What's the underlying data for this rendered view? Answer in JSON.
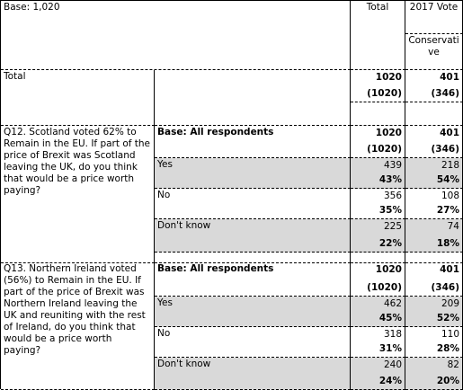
{
  "header": {
    "base": "Base: 1,020",
    "total": "Total",
    "group": "2017 Vote",
    "subgroup": "Conservative"
  },
  "total_row": {
    "label": "Total",
    "total": [
      "1020",
      "(1020)"
    ],
    "conservative": [
      "401",
      "(346)"
    ]
  },
  "questions": [
    {
      "question": "Q12. Scotland voted 62% to Remain in the EU. If part of the price of Brexit was Scotland leaving the UK, do you think that would be a price worth paying?",
      "base_label": "Base: All respondents",
      "base": {
        "total": [
          "1020",
          "(1020)"
        ],
        "conservative": [
          "401",
          "(346)"
        ]
      },
      "rows": [
        {
          "label": "Yes",
          "total": [
            "439",
            "43%"
          ],
          "conservative": [
            "218",
            "54%"
          ]
        },
        {
          "label": "No",
          "total": [
            "356",
            "35%"
          ],
          "conservative": [
            "108",
            "27%"
          ]
        },
        {
          "label": "Don't know",
          "total": [
            "225",
            "22%"
          ],
          "conservative": [
            "74",
            "18%"
          ]
        }
      ]
    },
    {
      "question": "Q13. Northern Ireland voted (56%) to Remain in the EU. If part of the price of Brexit was Northern Ireland leaving the UK and reuniting with the rest of Ireland, do you think that would be a price worth paying?",
      "base_label": "Base: All respondents",
      "base": {
        "total": [
          "1020",
          "(1020)"
        ],
        "conservative": [
          "401",
          "(346)"
        ]
      },
      "rows": [
        {
          "label": "Yes",
          "total": [
            "462",
            "45%"
          ],
          "conservative": [
            "209",
            "52%"
          ]
        },
        {
          "label": "No",
          "total": [
            "318",
            "31%"
          ],
          "conservative": [
            "110",
            "28%"
          ]
        },
        {
          "label": "Don't know",
          "total": [
            "240",
            "24%"
          ],
          "conservative": [
            "82",
            "20%"
          ]
        }
      ]
    }
  ]
}
